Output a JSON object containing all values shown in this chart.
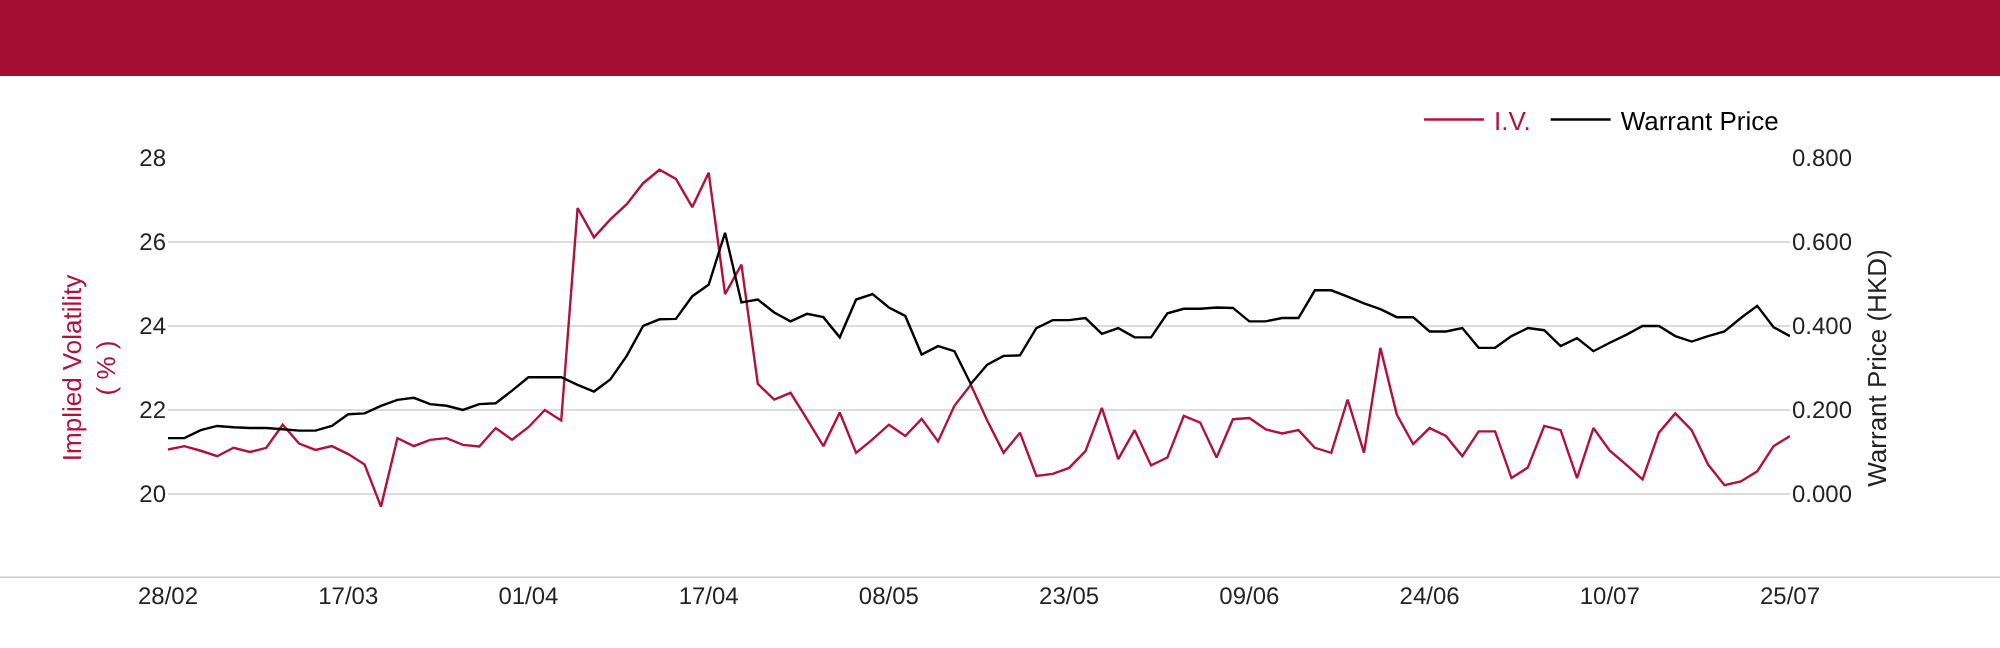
{
  "chart_data": {
    "type": "line",
    "categories": [
      "28/02",
      null,
      null,
      null,
      null,
      null,
      null,
      null,
      null,
      null,
      null,
      "17/03",
      null,
      null,
      null,
      null,
      null,
      null,
      null,
      null,
      null,
      null,
      "01/04",
      null,
      null,
      null,
      null,
      null,
      null,
      null,
      null,
      null,
      null,
      "17/04",
      null,
      null,
      null,
      null,
      null,
      null,
      null,
      null,
      null,
      null,
      "08/05",
      null,
      null,
      null,
      null,
      null,
      null,
      null,
      null,
      null,
      null,
      "23/05",
      null,
      null,
      null,
      null,
      null,
      null,
      null,
      null,
      null,
      null,
      "09/06",
      null,
      null,
      null,
      null,
      null,
      null,
      null,
      null,
      null,
      null,
      "24/06",
      null,
      null,
      null,
      null,
      null,
      null,
      null,
      null,
      null,
      null,
      "10/07",
      null,
      null,
      null,
      null,
      null,
      null,
      null,
      null,
      null,
      null,
      "25/07"
    ],
    "series": [
      {
        "name": "I.V.",
        "color": "#b0123e",
        "values": [
          21.06,
          21.14,
          21.03,
          20.9,
          21.1,
          21.0,
          21.1,
          21.65,
          21.2,
          21.05,
          21.14,
          20.95,
          20.7,
          19.7,
          21.33,
          21.14,
          21.29,
          21.33,
          21.17,
          21.13,
          21.57,
          21.29,
          21.59,
          22.0,
          21.75,
          26.81,
          26.11,
          26.54,
          26.9,
          27.4,
          27.72,
          27.5,
          26.83,
          27.65,
          24.76,
          25.46,
          22.62,
          22.25,
          22.41,
          21.78,
          21.14,
          21.94,
          20.98,
          21.3,
          21.65,
          21.38,
          21.79,
          21.25,
          22.1,
          22.6,
          21.75,
          20.98,
          21.46,
          20.43,
          20.48,
          20.62,
          21.02,
          22.05,
          20.83,
          21.52,
          20.68,
          20.87,
          21.86,
          21.7,
          20.87,
          21.78,
          21.81,
          21.54,
          21.44,
          21.52,
          21.1,
          20.98,
          22.25,
          20.98,
          23.48,
          21.89,
          21.19,
          21.57,
          21.38,
          20.9,
          21.49,
          21.49,
          20.38,
          20.63,
          21.62,
          21.52,
          20.38,
          21.57,
          21.03,
          20.7,
          20.35,
          21.46,
          21.92,
          21.52,
          20.7,
          20.21,
          20.3,
          20.54,
          21.14,
          21.38
        ]
      },
      {
        "name": "Warrant Price",
        "color": "#000000",
        "axis": "y2",
        "values": [
          0.133,
          0.133,
          0.152,
          0.162,
          0.159,
          0.157,
          0.157,
          0.154,
          0.151,
          0.151,
          0.162,
          0.19,
          0.192,
          0.21,
          0.224,
          0.229,
          0.214,
          0.21,
          0.2,
          0.214,
          0.216,
          0.246,
          0.278,
          0.278,
          0.278,
          0.26,
          0.244,
          0.273,
          0.329,
          0.4,
          0.416,
          0.417,
          0.471,
          0.498,
          0.622,
          0.456,
          0.463,
          0.432,
          0.411,
          0.429,
          0.421,
          0.373,
          0.463,
          0.476,
          0.444,
          0.424,
          0.332,
          0.352,
          0.34,
          0.262,
          0.308,
          0.329,
          0.33,
          0.395,
          0.414,
          0.414,
          0.419,
          0.381,
          0.395,
          0.373,
          0.373,
          0.43,
          0.441,
          0.441,
          0.444,
          0.443,
          0.411,
          0.411,
          0.419,
          0.419,
          0.485,
          0.485,
          0.47,
          0.454,
          0.44,
          0.421,
          0.421,
          0.387,
          0.387,
          0.395,
          0.348,
          0.348,
          0.376,
          0.395,
          0.39,
          0.352,
          0.371,
          0.34,
          0.36,
          0.379,
          0.4,
          0.4,
          0.376,
          0.363,
          0.376,
          0.387,
          0.419,
          0.448,
          0.397,
          0.376
        ]
      }
    ],
    "ylabel": "Implied Volatility\n( % )",
    "y2label": "Warrant Price (HKD)",
    "ylim": [
      18,
      28
    ],
    "yticks": [
      20,
      22,
      24,
      26,
      28
    ],
    "y2lim": [
      -0.2,
      0.8
    ],
    "y2ticks": [
      {
        "value": 0,
        "label": "0.000"
      },
      {
        "value": 0.2,
        "label": "0.200"
      },
      {
        "value": 0.4,
        "label": "0.400"
      },
      {
        "value": 0.6,
        "label": "0.600"
      },
      {
        "value": 0.8,
        "label": "0.800"
      }
    ],
    "grid": "y",
    "legend": "top right",
    "marker": "none",
    "line_style": "solid"
  }
}
